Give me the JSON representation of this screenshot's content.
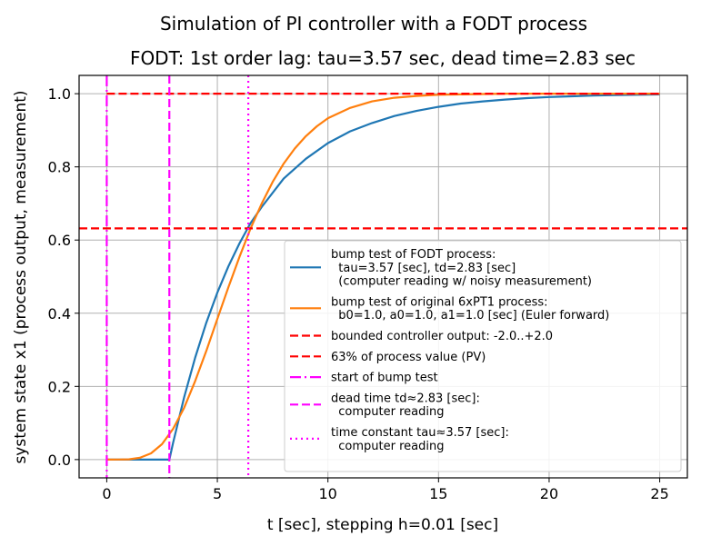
{
  "chart_data": {
    "type": "line",
    "suptitle": "Simulation of PI controller with a FODT process",
    "title": "FODT: 1st order lag: tau=3.57 sec, dead time=2.83 sec",
    "xlabel": "t [sec], stepping h=0.01 [sec]",
    "ylabel": "system state x1 (process output, measurement)",
    "xlim": [
      -1.25,
      26.25
    ],
    "ylim": [
      -0.05,
      1.05
    ],
    "xticks": [
      0,
      5,
      10,
      15,
      20,
      25
    ],
    "yticks": [
      0.0,
      0.2,
      0.4,
      0.6,
      0.8,
      1.0
    ],
    "xtick_labels": [
      "0",
      "5",
      "10",
      "15",
      "20",
      "25"
    ],
    "ytick_labels": [
      "0.0",
      "0.2",
      "0.4",
      "0.6",
      "0.8",
      "1.0"
    ],
    "grid": true,
    "legend_position": "lower-right",
    "series": [
      {
        "name": "bump test of FODT process:\n  tau=3.57 [sec], td=2.83 [sec]\n  (computer reading w/ noisy measurement)",
        "color": "#1f77b4",
        "style": "solid",
        "x": [
          0,
          1,
          2,
          2.83,
          3,
          3.5,
          4,
          4.5,
          5,
          5.5,
          6,
          6.5,
          7,
          8,
          9,
          10,
          11,
          12,
          13,
          14,
          15,
          16,
          17,
          18,
          19,
          20,
          21,
          22,
          23,
          24,
          25
        ],
        "y": [
          0,
          0,
          0,
          0,
          0.046,
          0.171,
          0.279,
          0.374,
          0.456,
          0.528,
          0.591,
          0.646,
          0.69,
          0.768,
          0.822,
          0.865,
          0.897,
          0.92,
          0.939,
          0.953,
          0.964,
          0.973,
          0.979,
          0.984,
          0.988,
          0.991,
          0.993,
          0.995,
          0.996,
          0.997,
          0.998
        ]
      },
      {
        "name": "bump test of original 6xPT1 process:\n  b0=1.0, a0=1.0, a1=1.0 [sec] (Euler forward)",
        "color": "#ff7f0e",
        "style": "solid",
        "x": [
          0,
          0.5,
          1,
          1.5,
          2,
          2.5,
          3,
          3.5,
          4,
          4.5,
          5,
          5.5,
          6,
          6.5,
          7,
          7.5,
          8,
          8.5,
          9,
          9.5,
          10,
          11,
          12,
          13,
          14,
          15,
          16,
          17,
          18,
          20,
          22,
          25
        ],
        "y": [
          0,
          0.0002,
          0.0006,
          0.005,
          0.017,
          0.042,
          0.084,
          0.142,
          0.215,
          0.297,
          0.384,
          0.471,
          0.554,
          0.631,
          0.699,
          0.759,
          0.809,
          0.85,
          0.884,
          0.911,
          0.933,
          0.961,
          0.979,
          0.989,
          0.994,
          0.997,
          0.998,
          0.999,
          1.0,
          1.0,
          1.0,
          1.0
        ]
      }
    ],
    "reference_lines": [
      {
        "orientation": "horizontal",
        "value": 1.0,
        "color": "#ff0000",
        "style": "dashed",
        "name": "bounded controller output: -2.0..+2.0",
        "x_range": [
          0,
          25
        ]
      },
      {
        "orientation": "horizontal",
        "value": 0.632,
        "color": "#ff0000",
        "style": "dashed",
        "name": "63% of process value (PV)"
      },
      {
        "orientation": "vertical",
        "value": 0,
        "color": "#ff00ff",
        "style": "dashdot",
        "name": "start of bump test"
      },
      {
        "orientation": "vertical",
        "value": 2.83,
        "color": "#ff00ff",
        "style": "dashed",
        "name": "dead time td≈2.83 [sec]:\n  computer reading"
      },
      {
        "orientation": "vertical",
        "value": 6.4,
        "color": "#ff00ff",
        "style": "dotted",
        "name": "time constant tau≈3.57 [sec]:\n  computer reading"
      }
    ]
  }
}
